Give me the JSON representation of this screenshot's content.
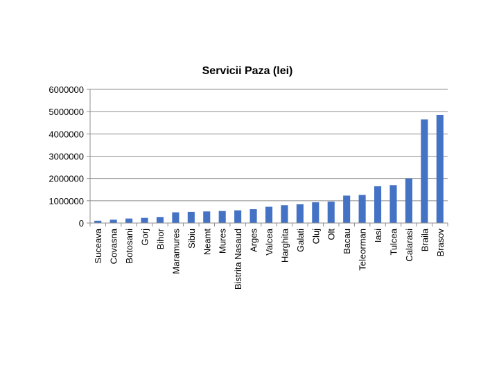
{
  "chart_data": {
    "type": "bar",
    "title": "Servicii Paza (lei)",
    "xlabel": "",
    "ylabel": "",
    "ylim": [
      0,
      6000000
    ],
    "yticks": [
      0,
      1000000,
      2000000,
      3000000,
      4000000,
      5000000,
      6000000
    ],
    "grid": true,
    "bar_color": "#4472c4",
    "categories": [
      "Suceava",
      "Covasna",
      "Botosani",
      "Gorj",
      "Bihor",
      "Maramures",
      "Sibiu",
      "Neamt",
      "Mures",
      "Bistrita Nasaud",
      "Arges",
      "Valcea",
      "Harghita",
      "Galati",
      "Cluj",
      "Olt",
      "Bacau",
      "Teleorman",
      "Iasi",
      "Tulcea",
      "Calarasi",
      "Braila",
      "Brasov"
    ],
    "values": [
      100000,
      150000,
      200000,
      230000,
      270000,
      480000,
      500000,
      520000,
      540000,
      570000,
      620000,
      730000,
      800000,
      840000,
      930000,
      960000,
      1230000,
      1260000,
      1650000,
      1700000,
      2000000,
      4650000,
      4850000
    ]
  }
}
